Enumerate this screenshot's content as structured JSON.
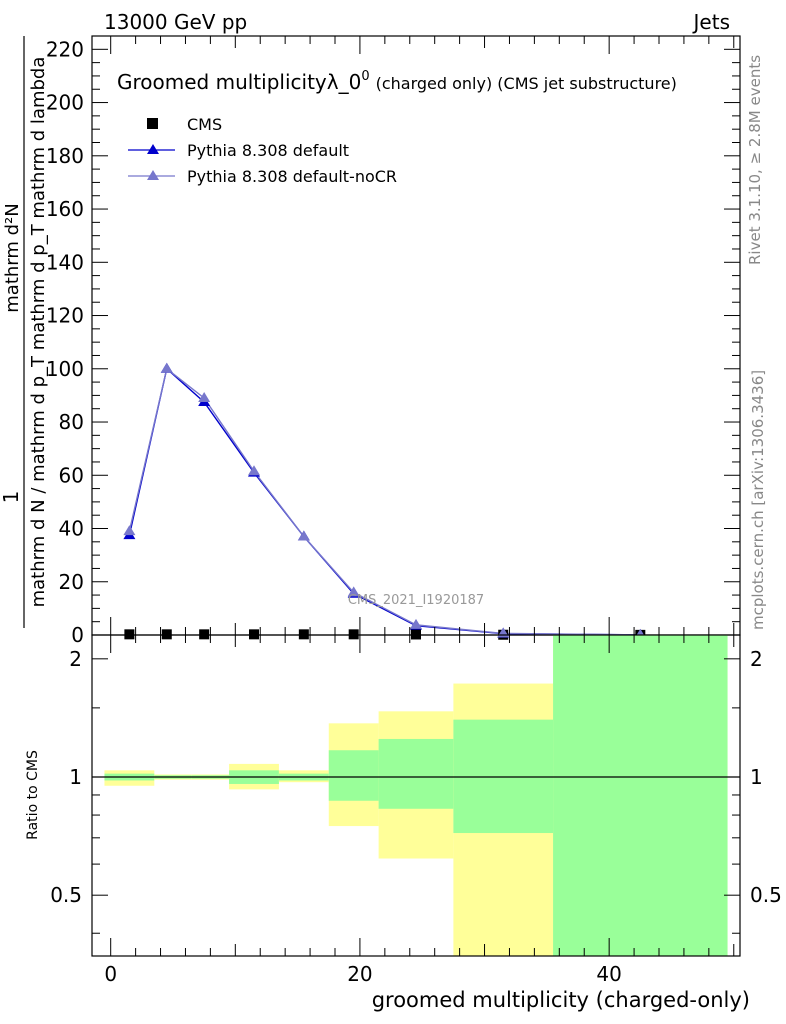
{
  "header": {
    "left": "13000 GeV pp",
    "right": "Jets"
  },
  "side_labels": {
    "rivet": "Rivet 3.1.10, ≥ 2.8M events",
    "mcplots": "mcplots.cern.ch [arXiv:1306.3436]"
  },
  "chart_data": [
    {
      "type": "line",
      "title": "Groomed multiplicityλ_0",
      "title_sup": "0",
      "title_suffix": "(charged only) (CMS jet substructure)",
      "watermark": "CMS_2021_I1920187",
      "ylabel_numerator": "mathrm d²N",
      "ylabel_denominator": "mathrm d N / mathrm d p_T mathrm d p_T mathrm d lambda",
      "ylabel_prefix": "1",
      "xlim": [
        -1.5,
        50.5
      ],
      "ylim": [
        0,
        225
      ],
      "yticks": [
        0,
        20,
        40,
        60,
        80,
        100,
        120,
        140,
        160,
        180,
        200,
        220
      ],
      "legend_position": "top-left",
      "bins": [
        [
          0.0,
          3.5
        ],
        [
          3.5,
          6.5
        ],
        [
          6.5,
          9.5
        ],
        [
          9.5,
          13.5
        ],
        [
          13.5,
          17.5
        ],
        [
          17.5,
          21.5
        ],
        [
          21.5,
          27.5
        ],
        [
          27.5,
          35.5
        ],
        [
          35.5,
          49.5
        ]
      ],
      "series": [
        {
          "name": "CMS",
          "kind": "data",
          "color": "#000000",
          "x": [
            1.5,
            4.5,
            7.5,
            11.5,
            15.5,
            19.5,
            24.5,
            31.5,
            42.5
          ],
          "y": [
            0.25,
            0.25,
            0.25,
            0.25,
            0.25,
            0.25,
            0.2,
            0.1,
            0.05
          ]
        },
        {
          "name": "Pythia 8.308 default",
          "kind": "mc",
          "color": "#0000cc",
          "x": [
            1.5,
            4.5,
            7.5,
            11.5,
            15.5,
            19.5,
            24.5,
            31.5,
            42.5
          ],
          "y": [
            37.5,
            100,
            87.5,
            61,
            37,
            15.5,
            3.5,
            0.5,
            0.05
          ]
        },
        {
          "name": "Pythia 8.308 default-noCR",
          "kind": "mc",
          "color": "#7777cc",
          "x": [
            1.5,
            4.5,
            7.5,
            11.5,
            15.5,
            19.5,
            24.5,
            31.5,
            42.5
          ],
          "y": [
            39,
            100,
            89,
            61.5,
            37,
            16,
            3.8,
            0.6,
            0.05
          ]
        }
      ]
    },
    {
      "type": "area",
      "ylabel": "Ratio to CMS",
      "xlabel": "groomed multiplicity (charged-only)",
      "xlim": [
        -1.5,
        50.5
      ],
      "ylim": [
        0.35,
        2.3
      ],
      "yticks": [
        0.5,
        1,
        2
      ],
      "xticks": [
        0,
        20,
        40
      ],
      "reference": 1,
      "band_colors": {
        "stat": "#99ff99",
        "total": "#ffff99"
      },
      "bands": [
        {
          "x": [
            -0.5,
            3.5
          ],
          "stat": [
            0.98,
            1.02
          ],
          "total": [
            0.95,
            1.04
          ]
        },
        {
          "x": [
            3.5,
            6.5
          ],
          "stat": [
            0.99,
            1.01
          ],
          "total": [
            0.985,
            1.015
          ]
        },
        {
          "x": [
            6.5,
            9.5
          ],
          "stat": [
            0.99,
            1.01
          ],
          "total": [
            0.985,
            1.015
          ]
        },
        {
          "x": [
            9.5,
            13.5
          ],
          "stat": [
            0.96,
            1.04
          ],
          "total": [
            0.93,
            1.08
          ]
        },
        {
          "x": [
            13.5,
            17.5
          ],
          "stat": [
            0.98,
            1.02
          ],
          "total": [
            0.97,
            1.04
          ]
        },
        {
          "x": [
            17.5,
            21.5
          ],
          "stat": [
            0.87,
            1.17
          ],
          "total": [
            0.75,
            1.37
          ]
        },
        {
          "x": [
            21.5,
            27.5
          ],
          "stat": [
            0.83,
            1.25
          ],
          "total": [
            0.62,
            1.47
          ]
        },
        {
          "x": [
            27.5,
            35.5
          ],
          "stat": [
            0.72,
            1.4
          ],
          "total": [
            0.35,
            1.73
          ]
        },
        {
          "x": [
            35.5,
            49.5
          ],
          "stat": [
            0.35,
            2.3
          ],
          "total": [
            0.35,
            2.3
          ]
        }
      ]
    }
  ]
}
